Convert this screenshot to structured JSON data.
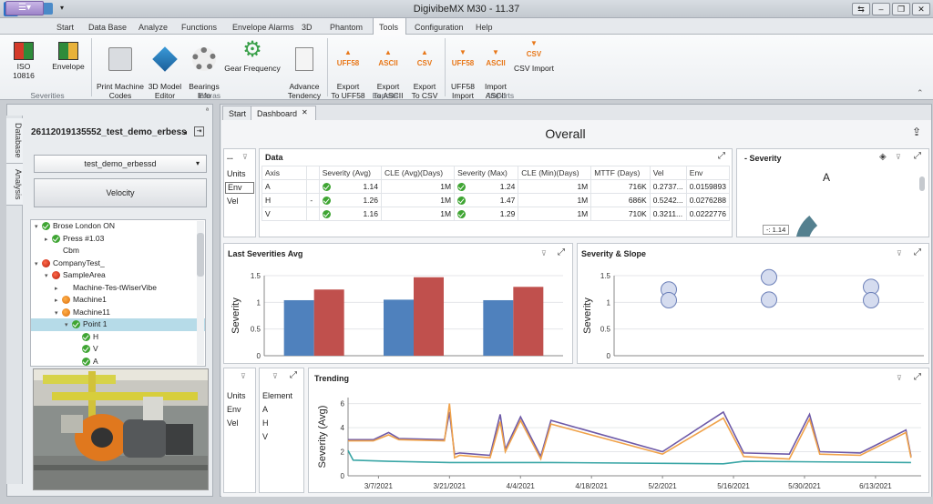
{
  "window": {
    "title": "DigivibeMX M30 - 11.37",
    "app_letter": "D",
    "controls": [
      "⇆",
      "–",
      "❐",
      "✕"
    ]
  },
  "menu": {
    "file_label": "☰▾",
    "tabs": [
      {
        "label": "Start"
      },
      {
        "label": "Data Base"
      },
      {
        "label": "Analyze"
      },
      {
        "label": "Functions"
      },
      {
        "label": "Envelope Alarms"
      },
      {
        "label": "3D"
      },
      {
        "label": "Phantom"
      },
      {
        "label": "Tools"
      },
      {
        "label": "Configuration"
      },
      {
        "label": "Help"
      }
    ],
    "active": "Tools"
  },
  "ribbon": {
    "groups": [
      {
        "label": "Severities",
        "buttons": [
          {
            "label": "ISO 10816"
          },
          {
            "label": "Envelope"
          }
        ]
      },
      {
        "label": "Extras",
        "buttons": [
          {
            "label": "Print Machine\nCodes"
          },
          {
            "label": "3D Model\nEditor"
          },
          {
            "label": "Bearings\nInfo"
          },
          {
            "label": "Gear Frequency"
          },
          {
            "label": "Advance\nTendency"
          }
        ]
      },
      {
        "label": "Exports",
        "buttons": [
          {
            "label": "Export\nTo UFF58",
            "tag": "UFF58"
          },
          {
            "label": "Export\nTo ASCII",
            "tag": "ASCII"
          },
          {
            "label": "Export\nTo CSV",
            "tag": "CSV"
          }
        ]
      },
      {
        "label": "Imports",
        "buttons": [
          {
            "label": "UFF58\nImport",
            "tag": "UFF58"
          },
          {
            "label": "Import\nASCII",
            "tag": "ASCII"
          },
          {
            "label": "CSV Import",
            "tag": "CSV"
          }
        ]
      }
    ]
  },
  "left_panel": {
    "side_tabs": [
      "Database",
      "Analysis"
    ],
    "pin_label": "ª",
    "db_title": "26112019135552_test_demo_erbessd",
    "db_combo": "test_demo_erbessd",
    "velocity_button": "Velocity",
    "tree": [
      {
        "label": "Brose London ON",
        "level": 0,
        "icon": "ok",
        "arrow": "▾"
      },
      {
        "label": "Press #1.03",
        "level": 1,
        "icon": "ok",
        "arrow": "▸"
      },
      {
        "label": "Cbm",
        "level": 1,
        "icon": "none",
        "arrow": ""
      },
      {
        "label": "CompanyTest_",
        "level": 0,
        "icon": "red",
        "arrow": "▾"
      },
      {
        "label": "SampleArea",
        "level": 1,
        "icon": "red",
        "arrow": "▾"
      },
      {
        "label": "Machine-Tes-tWiserVibe",
        "level": 2,
        "icon": "none",
        "arrow": "▸"
      },
      {
        "label": "Machine1",
        "level": 2,
        "icon": "org",
        "arrow": "▸"
      },
      {
        "label": "Machine11",
        "level": 2,
        "icon": "org",
        "arrow": "▾"
      },
      {
        "label": "Point 1",
        "level": 3,
        "icon": "ok",
        "arrow": "▾",
        "selected": true
      },
      {
        "label": "H",
        "level": 4,
        "icon": "ok",
        "arrow": ""
      },
      {
        "label": "V",
        "level": 4,
        "icon": "ok",
        "arrow": ""
      },
      {
        "label": "A",
        "level": 4,
        "icon": "ok",
        "arrow": ""
      }
    ]
  },
  "doc_tabs": [
    {
      "label": "Start"
    },
    {
      "label": "Dashboard"
    }
  ],
  "doc_tab_close": "✕",
  "dashboard": {
    "title": "Overall",
    "share_icon": "⇪",
    "units_filter": {
      "header": "Units",
      "items": [
        "Env",
        "Vel"
      ]
    },
    "data_table": {
      "title": "Data",
      "dots": "...",
      "columns": [
        "Axis",
        "",
        "Severity (Avg)",
        "CLE (Avg)(Days)",
        "Severity (Max)",
        "CLE (Min)(Days)",
        "MTTF (Days)",
        "Vel",
        "Env"
      ],
      "rows": [
        {
          "axis": "A",
          "flag": "",
          "sev_avg": "1.14",
          "cle_avg": "1M",
          "sev_max": "1.24",
          "cle_min": "1M",
          "mttf": "716K",
          "vel": "0.2737...",
          "env": "0.0159893"
        },
        {
          "axis": "H",
          "flag": "-",
          "sev_avg": "1.26",
          "cle_avg": "1M",
          "sev_max": "1.47",
          "cle_min": "1M",
          "mttf": "686K",
          "vel": "0.5242...",
          "env": "0.0276288"
        },
        {
          "axis": "V",
          "flag": "",
          "sev_avg": "1.16",
          "cle_avg": "1M",
          "sev_max": "1.29",
          "cle_min": "1M",
          "mttf": "710K",
          "vel": "0.3211...",
          "env": "0.0222776"
        }
      ]
    },
    "severity_gauge": {
      "title": "- Severity",
      "axis": "A",
      "value": 1.14,
      "value_label": "-: 1.14",
      "max": 4
    },
    "last_sev_title": "Last Severities Avg",
    "slope_title": "Severity & Slope",
    "trend_units": {
      "header": "Units",
      "items": [
        "Env",
        "Vel"
      ]
    },
    "trend_element": {
      "header": "Element",
      "items": [
        "A",
        "H",
        "V"
      ]
    },
    "trending_title": "Trending",
    "colors": {
      "blue": "#4f81bd",
      "red": "#c0504d",
      "purple": "#6e5aa8",
      "orange": "#f0a24a",
      "teal": "#3aa6a6"
    }
  },
  "chart_data": [
    {
      "type": "bar",
      "title": "Last Severities Avg",
      "ylabel": "Severity",
      "ylim": [
        0,
        1.5
      ],
      "yticks": [
        "0",
        "0.5",
        "1",
        "1.5"
      ],
      "categories": [
        "",
        "",
        ""
      ],
      "series": [
        {
          "values": [
            1.04,
            1.05,
            1.04
          ]
        },
        {
          "values": [
            1.24,
            1.47,
            1.29
          ]
        }
      ]
    },
    {
      "type": "scatter",
      "title": "Severity & Slope",
      "ylabel": "Severity",
      "ylim": [
        0,
        1.5
      ],
      "yticks": [
        "0",
        "0.5",
        "1",
        "1.5"
      ],
      "points": [
        {
          "x": 1,
          "y": 1.24
        },
        {
          "x": 1,
          "y": 1.04
        },
        {
          "x": 2,
          "y": 1.47
        },
        {
          "x": 2,
          "y": 1.05
        },
        {
          "x": 3,
          "y": 1.29
        },
        {
          "x": 3,
          "y": 1.04
        }
      ]
    },
    {
      "type": "line",
      "title": "Trending",
      "ylabel": "Severity (Avg)",
      "ylim": [
        0,
        6.5
      ],
      "yticks": [
        "0",
        "2",
        "4",
        "6"
      ],
      "xticks": [
        "3/7/2021",
        "3/21/2021",
        "4/4/2021",
        "4/18/2021",
        "5/2/2021",
        "5/16/2021",
        "5/30/2021",
        "6/13/2021"
      ],
      "xrange": [
        "2021-03-01",
        "2021-06-22"
      ],
      "series": [
        {
          "color": "purple",
          "points": [
            [
              "2021-03-01",
              3.0
            ],
            [
              "2021-03-06",
              3.0
            ],
            [
              "2021-03-09",
              3.6
            ],
            [
              "2021-03-11",
              3.1
            ],
            [
              "2021-03-20",
              3.0
            ],
            [
              "2021-03-21",
              5.3
            ],
            [
              "2021-03-22",
              1.8
            ],
            [
              "2021-03-23",
              1.9
            ],
            [
              "2021-03-29",
              1.7
            ],
            [
              "2021-03-31",
              5.1
            ],
            [
              "2021-04-01",
              2.2
            ],
            [
              "2021-04-04",
              4.9
            ],
            [
              "2021-04-08",
              1.6
            ],
            [
              "2021-04-10",
              4.6
            ],
            [
              "2021-05-02",
              2.0
            ],
            [
              "2021-05-14",
              5.3
            ],
            [
              "2021-05-18",
              1.9
            ],
            [
              "2021-05-27",
              1.8
            ],
            [
              "2021-05-31",
              5.1
            ],
            [
              "2021-06-02",
              2.0
            ],
            [
              "2021-06-10",
              1.9
            ],
            [
              "2021-06-19",
              3.8
            ],
            [
              "2021-06-20",
              1.6
            ]
          ]
        },
        {
          "color": "orange",
          "points": [
            [
              "2021-03-01",
              2.9
            ],
            [
              "2021-03-06",
              2.9
            ],
            [
              "2021-03-09",
              3.4
            ],
            [
              "2021-03-11",
              3.0
            ],
            [
              "2021-03-20",
              2.9
            ],
            [
              "2021-03-21",
              6.0
            ],
            [
              "2021-03-22",
              1.5
            ],
            [
              "2021-03-23",
              1.7
            ],
            [
              "2021-03-29",
              1.5
            ],
            [
              "2021-03-31",
              4.5
            ],
            [
              "2021-04-01",
              2.0
            ],
            [
              "2021-04-04",
              4.6
            ],
            [
              "2021-04-08",
              1.4
            ],
            [
              "2021-04-10",
              4.3
            ],
            [
              "2021-05-02",
              1.8
            ],
            [
              "2021-05-14",
              4.8
            ],
            [
              "2021-05-18",
              1.6
            ],
            [
              "2021-05-27",
              1.4
            ],
            [
              "2021-05-31",
              4.7
            ],
            [
              "2021-06-02",
              1.8
            ],
            [
              "2021-06-10",
              1.7
            ],
            [
              "2021-06-19",
              3.6
            ],
            [
              "2021-06-20",
              1.5
            ]
          ]
        },
        {
          "color": "teal",
          "points": [
            [
              "2021-03-01",
              2.1
            ],
            [
              "2021-03-02",
              1.3
            ],
            [
              "2021-03-09",
              1.2
            ],
            [
              "2021-03-21",
              1.1
            ],
            [
              "2021-03-29",
              1.1
            ],
            [
              "2021-04-10",
              1.1
            ],
            [
              "2021-05-14",
              1.0
            ],
            [
              "2021-05-18",
              1.2
            ],
            [
              "2021-06-20",
              1.1
            ]
          ]
        }
      ]
    }
  ]
}
